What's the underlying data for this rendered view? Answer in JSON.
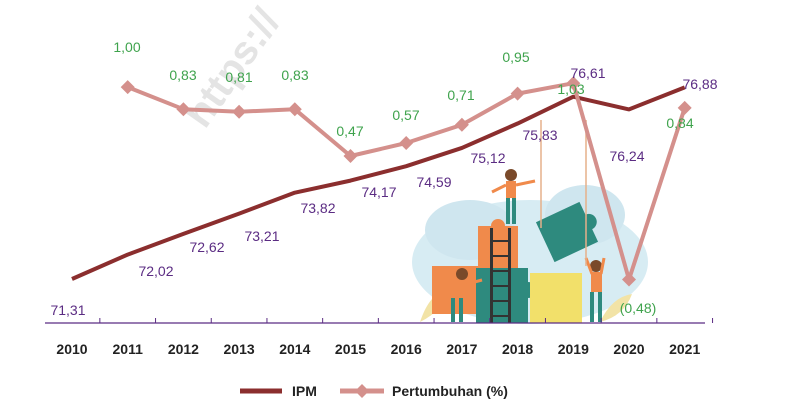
{
  "chart_data": {
    "type": "line",
    "categories": [
      "2010",
      "2011",
      "2012",
      "2013",
      "2014",
      "2015",
      "2016",
      "2017",
      "2018",
      "2019",
      "2020",
      "2021"
    ],
    "series": [
      {
        "name": "IPM",
        "color": "#8b2e2e",
        "values": [
          71.31,
          72.02,
          72.62,
          73.21,
          73.82,
          74.17,
          74.59,
          75.12,
          75.83,
          76.61,
          76.24,
          76.88
        ],
        "labels": [
          "71,31",
          "72,02",
          "72,62",
          "73,21",
          "73,82",
          "74,17",
          "74,59",
          "75,12",
          "75,83",
          "76,61",
          "76,24",
          "76,88"
        ],
        "label_color": "#5b2c83"
      },
      {
        "name": "Pertumbuhan (%)",
        "color": "#d4908c",
        "values": [
          null,
          1.0,
          0.83,
          0.81,
          0.83,
          0.47,
          0.57,
          0.71,
          0.95,
          1.03,
          -0.48,
          0.84
        ],
        "labels": [
          "",
          "1,00",
          "0,83",
          "0,81",
          "0,83",
          "0,47",
          "0,57",
          "0,71",
          "0,95",
          "1,03",
          "(0,48)",
          "0,84"
        ],
        "label_color": "#3fa34d"
      }
    ],
    "legend_position": "bottom-center",
    "grid": false
  },
  "watermark": "https://"
}
